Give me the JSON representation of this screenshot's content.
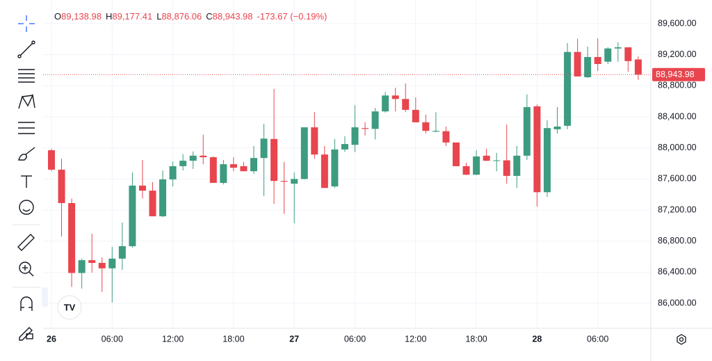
{
  "chart_data": {
    "type": "candlestick",
    "categories": [
      "26",
      null,
      null,
      null,
      null,
      null,
      "06:00",
      null,
      null,
      null,
      null,
      null,
      "12:00",
      null,
      null,
      null,
      null,
      null,
      "18:00",
      null,
      null,
      null,
      null,
      null,
      "27",
      null,
      null,
      null,
      null,
      null,
      "06:00",
      null,
      null,
      null,
      null,
      null,
      "12:00",
      null,
      null,
      null,
      null,
      null,
      "18:00",
      null,
      null,
      null,
      null,
      null,
      "28",
      null,
      null,
      null,
      null,
      null,
      "06:00",
      null,
      null,
      null,
      null
    ],
    "open": [
      87970,
      87720,
      87290,
      86390,
      86555,
      86520,
      86450,
      86575,
      86735,
      87515,
      87450,
      87120,
      87595,
      87765,
      87835,
      87900,
      87880,
      87550,
      87790,
      87765,
      87700,
      87870,
      88115,
      87575,
      87540,
      87600,
      88265,
      87915,
      87505,
      87980,
      88040,
      88255,
      88245,
      88470,
      88675,
      88630,
      88490,
      88330,
      88210,
      88215,
      88070,
      87765,
      87655,
      87900,
      87835,
      87840,
      87640,
      87900,
      88535,
      87430,
      88240,
      88285,
      89235,
      88910,
      89170,
      89110,
      89280,
      89295,
      89138.98
    ],
    "high": [
      87990,
      87860,
      87350,
      86575,
      86895,
      86590,
      86725,
      87040,
      87685,
      87845,
      87560,
      87710,
      87825,
      87920,
      87955,
      88170,
      87890,
      87845,
      87880,
      87820,
      88025,
      88310,
      88760,
      87820,
      87685,
      88265,
      88460,
      88025,
      88115,
      88150,
      88550,
      88330,
      88515,
      88720,
      88775,
      88830,
      88650,
      88430,
      88460,
      88275,
      88070,
      87810,
      87970,
      87990,
      87935,
      88300,
      88025,
      88690,
      88560,
      88355,
      88525,
      89350,
      89405,
      89305,
      89410,
      89295,
      89360,
      89295,
      89177.41
    ],
    "low": [
      87700,
      86860,
      86210,
      86190,
      86395,
      86145,
      86010,
      86430,
      86715,
      87350,
      87120,
      87110,
      87505,
      87710,
      87730,
      87790,
      87550,
      87530,
      87700,
      87700,
      87665,
      87380,
      87280,
      87150,
      87030,
      87595,
      87860,
      87485,
      87485,
      87950,
      87945,
      88160,
      88110,
      88455,
      88470,
      88460,
      88330,
      88185,
      88200,
      88025,
      87765,
      87650,
      87650,
      87830,
      87700,
      87540,
      87485,
      87845,
      87245,
      87370,
      88185,
      88240,
      88920,
      88900,
      88990,
      89080,
      89110,
      88980,
      88876.06
    ],
    "close": [
      87720,
      87290,
      86390,
      86555,
      86520,
      86450,
      86575,
      86735,
      87515,
      87450,
      87120,
      87595,
      87765,
      87835,
      87900,
      87880,
      87550,
      87790,
      87745,
      87700,
      87870,
      88120,
      87575,
      87565,
      87600,
      88265,
      87915,
      87485,
      87980,
      88050,
      88265,
      88245,
      88470,
      88675,
      88630,
      88490,
      88330,
      88220,
      88220,
      88070,
      87765,
      87655,
      87890,
      87835,
      87840,
      87640,
      87900,
      88525,
      87430,
      88255,
      88275,
      89235,
      88920,
      89170,
      89080,
      89280,
      89295,
      89117.65,
      88943.98
    ],
    "up_color": "#3d9b80",
    "down_color": "#e8454e",
    "ylim": [
      85678,
      89904
    ],
    "yticks": [
      {
        "value": 86000,
        "label": "86,000.00"
      },
      {
        "value": 86400,
        "label": "86,400.00"
      },
      {
        "value": 86800,
        "label": "86,800.00"
      },
      {
        "value": 87200,
        "label": "87,200.00"
      },
      {
        "value": 87600,
        "label": "87,600.00"
      },
      {
        "value": 88000,
        "label": "88,000.00"
      },
      {
        "value": 88400,
        "label": "88,400.00"
      },
      {
        "value": 88800,
        "label": "88,800.00"
      },
      {
        "value": 89200,
        "label": "89,200.00"
      },
      {
        "value": 89600,
        "label": "89,600.00"
      }
    ],
    "grid": true,
    "legend": [
      {
        "key": "O",
        "text": "89,138.98"
      },
      {
        "key": "H",
        "text": "89,177.41"
      },
      {
        "key": "L",
        "text": "88,876.06"
      },
      {
        "key": "C",
        "text": "88,943.98"
      }
    ],
    "change_label": "-173.67 (−0.19%)",
    "last_price_label": "88,943.98"
  }
}
